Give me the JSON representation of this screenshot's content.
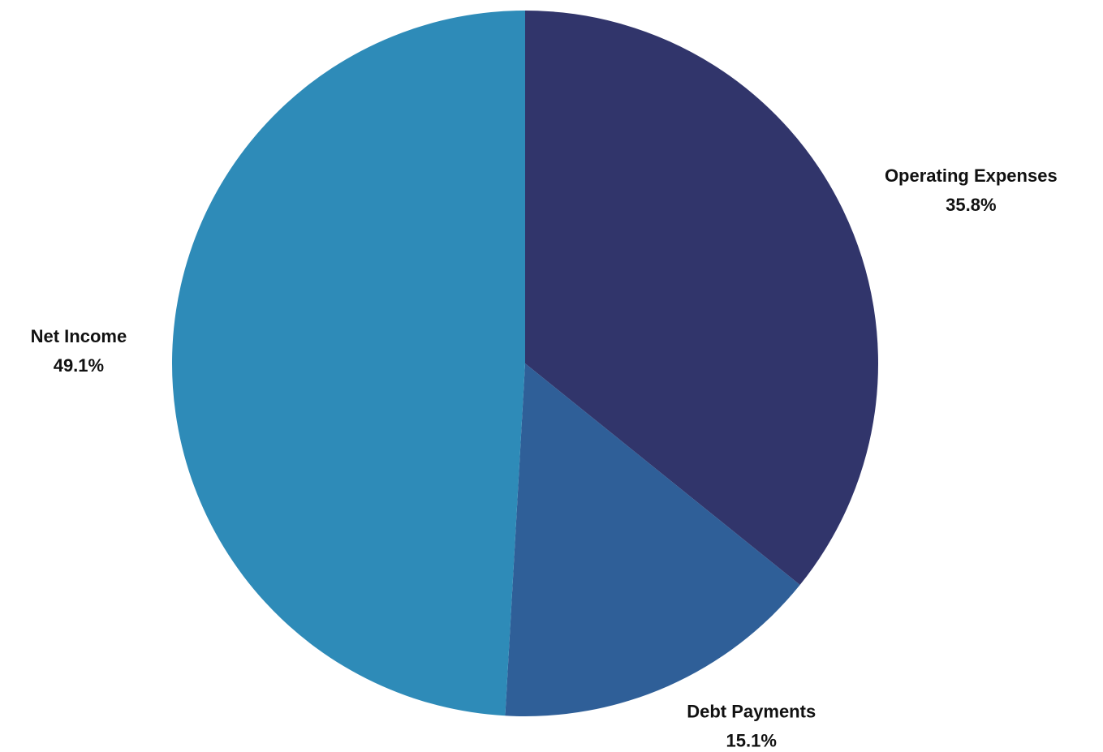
{
  "chart_data": {
    "type": "pie",
    "categories": [
      "Operating Expenses",
      "Debt Payments",
      "Net Income"
    ],
    "values": [
      35.8,
      15.1,
      49.1
    ],
    "value_labels": [
      "35.8%",
      "15.1%",
      "49.1%"
    ],
    "colors": [
      "#31356b",
      "#2f5f98",
      "#2e8bb8"
    ]
  }
}
